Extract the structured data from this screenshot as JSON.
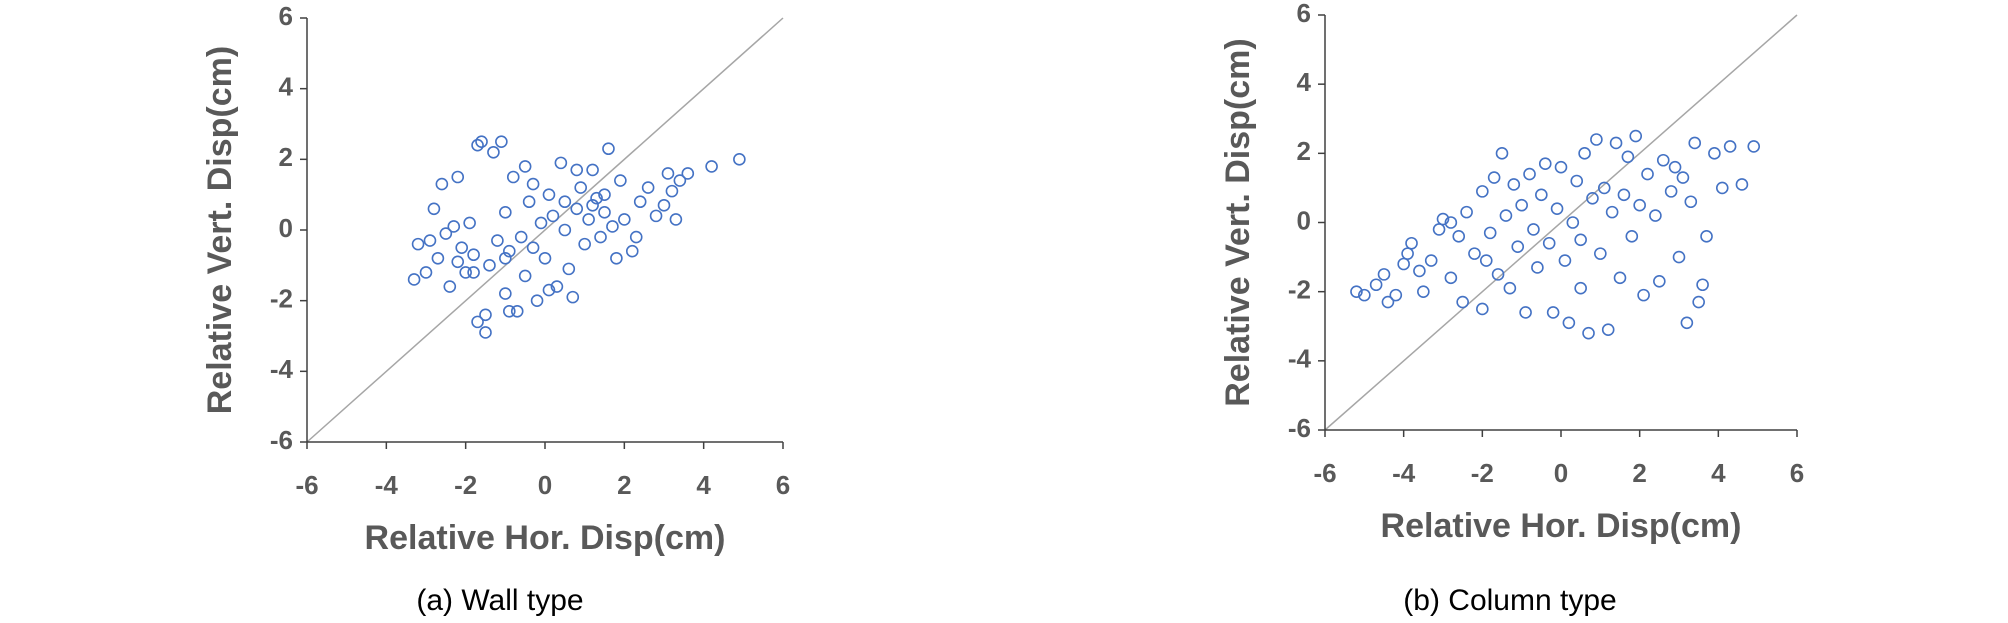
{
  "chart_data": [
    {
      "type": "scatter",
      "caption": "(a) Wall type",
      "xlabel": "Relative Hor. Disp(cm)",
      "ylabel": "Relative Vert. Disp(cm)",
      "color": "#4472c4",
      "xlim": [
        -6,
        6
      ],
      "ylim": [
        -6,
        6
      ],
      "xticks": [
        -6,
        -4,
        -2,
        0,
        2,
        4,
        6
      ],
      "yticks": [
        -6,
        -4,
        -2,
        0,
        2,
        4,
        6
      ],
      "x": [
        -3.3,
        -3.2,
        -3.0,
        -2.9,
        -2.8,
        -2.7,
        -2.6,
        -2.5,
        -2.4,
        -2.3,
        -2.2,
        -2.1,
        -2.0,
        -1.9,
        -1.8,
        -1.7,
        -1.6,
        -1.5,
        -1.5,
        -1.4,
        -1.3,
        -1.2,
        -1.1,
        -1.0,
        -1.0,
        -0.9,
        -0.8,
        -0.7,
        -0.6,
        -0.5,
        -0.5,
        -0.4,
        -0.3,
        -0.2,
        -0.1,
        0.0,
        0.1,
        0.2,
        0.3,
        0.4,
        0.5,
        0.6,
        0.7,
        0.8,
        0.9,
        1.0,
        1.1,
        1.2,
        1.3,
        1.4,
        1.5,
        1.6,
        1.7,
        1.8,
        1.9,
        2.0,
        2.2,
        2.4,
        2.6,
        2.8,
        3.0,
        3.1,
        3.2,
        3.4,
        3.6,
        3.3,
        4.2,
        4.9,
        -1.8,
        -2.2,
        0.8,
        1.2,
        -0.3,
        2.3,
        -1.0,
        0.5,
        1.5,
        -1.7,
        -0.9,
        0.1
      ],
      "y": [
        -1.4,
        -0.4,
        -1.2,
        -0.3,
        0.6,
        -0.8,
        1.3,
        -0.1,
        -1.6,
        0.1,
        -0.9,
        -0.5,
        -1.2,
        0.2,
        -0.7,
        2.4,
        2.5,
        -2.4,
        -2.9,
        -1.0,
        2.2,
        -0.3,
        2.5,
        -1.8,
        0.5,
        -0.6,
        1.5,
        -2.3,
        -0.2,
        1.8,
        -1.3,
        0.8,
        -0.5,
        -2.0,
        0.2,
        -0.8,
        1.0,
        0.4,
        -1.6,
        1.9,
        0.0,
        -1.1,
        -1.9,
        0.6,
        1.2,
        -0.4,
        0.3,
        1.7,
        0.9,
        -0.2,
        0.5,
        2.3,
        0.1,
        -0.8,
        1.4,
        0.3,
        -0.6,
        0.8,
        1.2,
        0.4,
        0.7,
        1.6,
        1.1,
        1.4,
        1.6,
        0.3,
        1.8,
        2.0,
        -1.2,
        1.5,
        1.7,
        0.7,
        1.3,
        -0.2,
        -0.8,
        0.8,
        1.0,
        -2.6,
        -2.3,
        -1.7
      ]
    },
    {
      "type": "scatter",
      "caption": "(b) Column type",
      "xlabel": "Relative Hor. Disp(cm)",
      "ylabel": "Relative Vert. Disp(cm)",
      "color": "#4472c4",
      "xlim": [
        -6,
        6
      ],
      "ylim": [
        -6,
        6
      ],
      "xticks": [
        -6,
        -4,
        -2,
        0,
        2,
        4,
        6
      ],
      "yticks": [
        -6,
        -4,
        -2,
        0,
        2,
        4,
        6
      ],
      "x": [
        -5.2,
        -5.0,
        -4.7,
        -4.5,
        -4.4,
        -4.2,
        -4.0,
        -3.8,
        -3.6,
        -3.5,
        -3.3,
        -3.1,
        -3.0,
        -2.8,
        -2.6,
        -2.5,
        -2.4,
        -2.2,
        -2.0,
        -2.0,
        -1.8,
        -1.7,
        -1.6,
        -1.5,
        -1.4,
        -1.3,
        -1.2,
        -1.1,
        -1.0,
        -0.9,
        -0.8,
        -0.7,
        -0.6,
        -0.5,
        -0.4,
        -0.3,
        -0.2,
        -0.1,
        0.0,
        0.1,
        0.2,
        0.3,
        0.4,
        0.5,
        0.6,
        0.7,
        0.8,
        0.9,
        1.0,
        1.1,
        1.2,
        1.3,
        1.4,
        1.5,
        1.6,
        1.7,
        1.8,
        1.9,
        2.0,
        2.1,
        2.2,
        2.4,
        2.5,
        2.6,
        2.8,
        3.0,
        3.1,
        3.2,
        3.3,
        3.4,
        3.5,
        3.6,
        3.7,
        3.9,
        4.1,
        4.3,
        4.6,
        4.9,
        -2.8,
        -1.9,
        0.5,
        2.9,
        -3.9
      ],
      "y": [
        -2.0,
        -2.1,
        -1.8,
        -1.5,
        -2.3,
        -2.1,
        -1.2,
        -0.6,
        -1.4,
        -2.0,
        -1.1,
        -0.2,
        0.1,
        -1.6,
        -0.4,
        -2.3,
        0.3,
        -0.9,
        -2.5,
        0.9,
        -0.3,
        1.3,
        -1.5,
        2.0,
        0.2,
        -1.9,
        1.1,
        -0.7,
        0.5,
        -2.6,
        1.4,
        -0.2,
        -1.3,
        0.8,
        1.7,
        -0.6,
        -2.6,
        0.4,
        1.6,
        -1.1,
        -2.9,
        0.0,
        1.2,
        -0.5,
        2.0,
        -3.2,
        0.7,
        2.4,
        -0.9,
        1.0,
        -3.1,
        0.3,
        2.3,
        -1.6,
        0.8,
        1.9,
        -0.4,
        2.5,
        0.5,
        -2.1,
        1.4,
        0.2,
        -1.7,
        1.8,
        0.9,
        -1.0,
        1.3,
        -2.9,
        0.6,
        2.3,
        -2.3,
        -1.8,
        -0.4,
        2.0,
        1.0,
        2.2,
        1.1,
        2.2,
        0.0,
        -1.1,
        -1.9,
        1.6,
        -0.9
      ]
    }
  ]
}
